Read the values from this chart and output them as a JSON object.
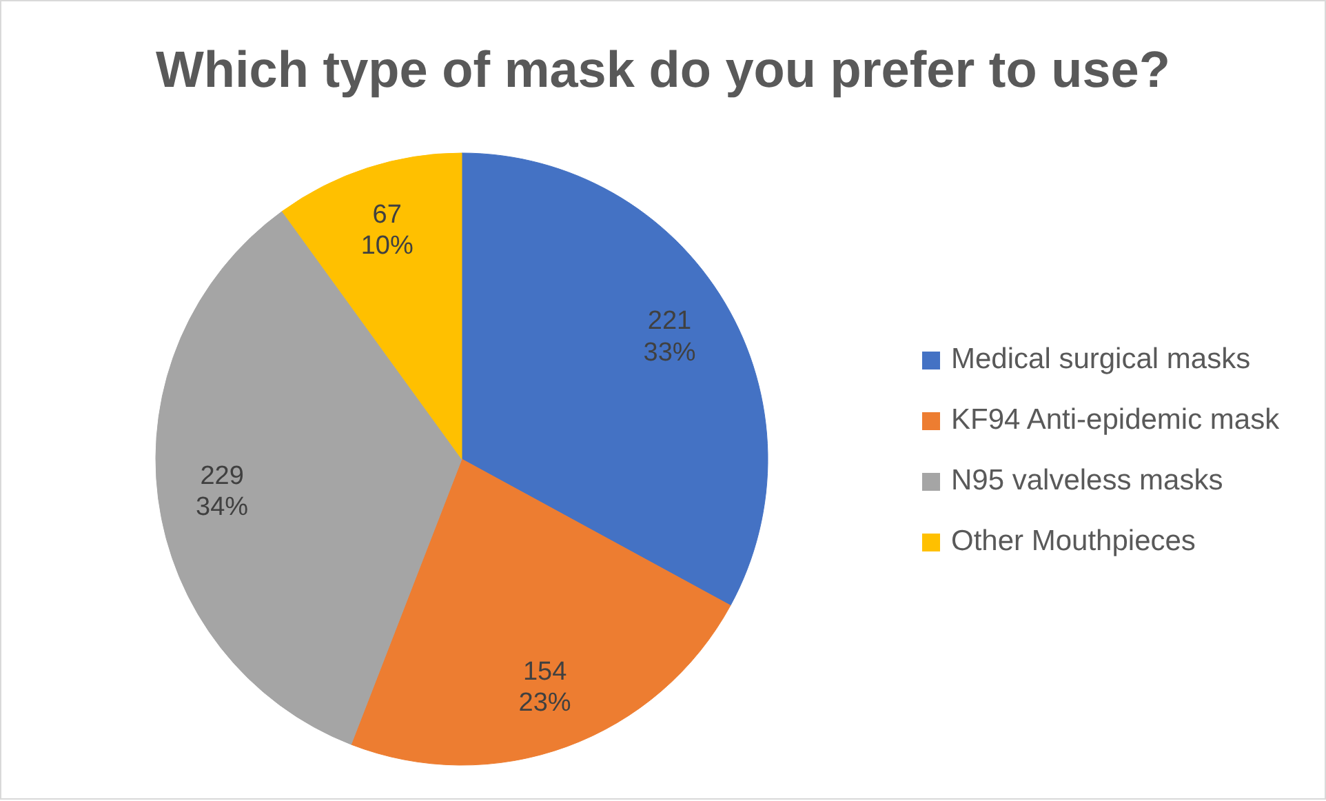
{
  "chart_data": {
    "type": "pie",
    "title": "Which type of mask do you prefer to use?",
    "categories": [
      "Medical surgical masks",
      "KF94 Anti-epidemic mask",
      "N95 valveless masks",
      "Other Mouthpieces"
    ],
    "values": [
      221,
      154,
      229,
      67
    ],
    "colors": [
      "#4472c4",
      "#ed7d31",
      "#a5a5a5",
      "#ffc000"
    ],
    "value_labels": [
      "221\n33%",
      "154\n23%",
      "229\n34%",
      "67\n10%"
    ],
    "legend": "right"
  }
}
